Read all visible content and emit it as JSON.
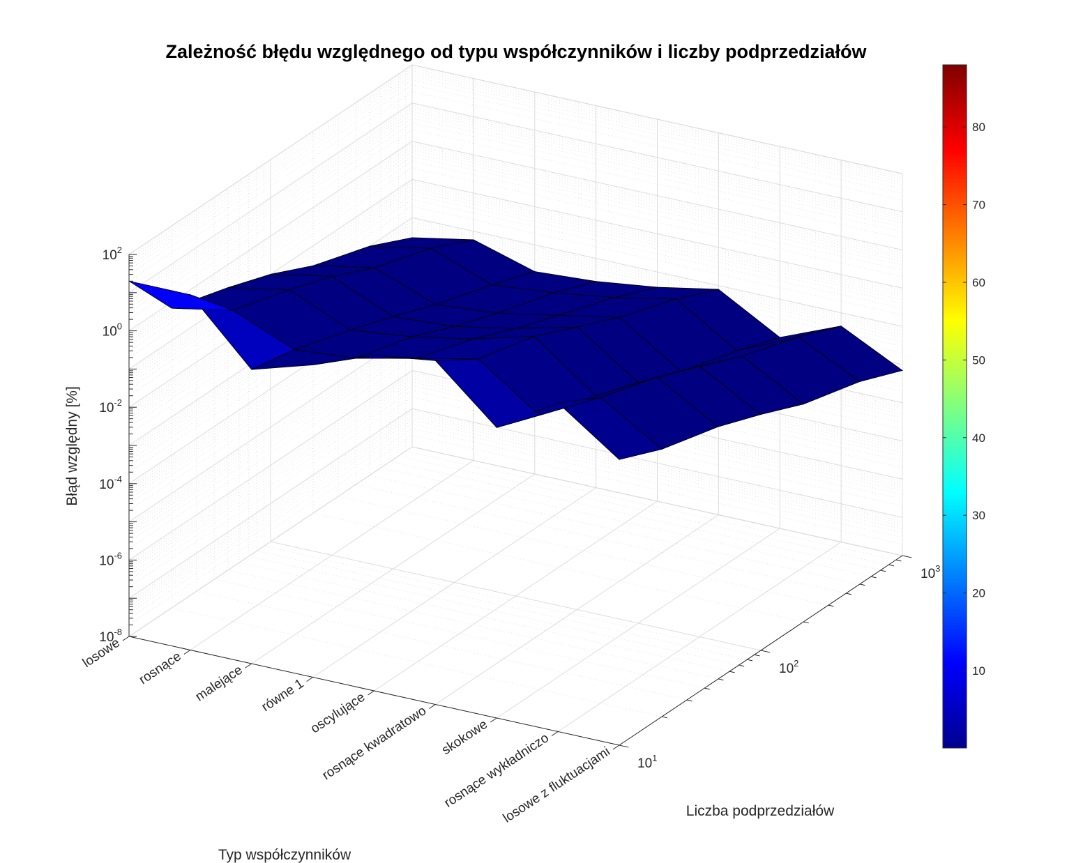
{
  "chart_data": {
    "type": "surface",
    "title": "Zależność błędu względnego od typu współczynników i liczby podprzedziałów",
    "xlabel": "Typ współczynników",
    "ylabel": "Liczba podprzedziałów",
    "zlabel": "Błąd względny [%]",
    "categories": [
      "losowe",
      "rosnące",
      "malejące",
      "równe 1",
      "oscylujące",
      "rosnące kwadratowo",
      "skokowe",
      "rosnące wykładniczo",
      "losowe z fluktuacjami"
    ],
    "y_ticks": [
      {
        "base": "10",
        "exp": "1",
        "value": 10
      },
      {
        "base": "10",
        "exp": "2",
        "value": 100
      },
      {
        "base": "10",
        "exp": "3",
        "value": 1000
      }
    ],
    "z_ticks": [
      {
        "base": "10",
        "exp": "-8",
        "value": 1e-08
      },
      {
        "base": "10",
        "exp": "-6",
        "value": 1e-06
      },
      {
        "base": "10",
        "exp": "-4",
        "value": 0.0001
      },
      {
        "base": "10",
        "exp": "-2",
        "value": 0.01
      },
      {
        "base": "10",
        "exp": "0",
        "value": 1
      },
      {
        "base": "10",
        "exp": "2",
        "value": 100
      }
    ],
    "ylim": [
      10,
      1000
    ],
    "zlim": [
      1e-08,
      100
    ],
    "zscale": "log",
    "grid": true,
    "colormap": "jet",
    "colorbar": {
      "ticks": [
        "10",
        "20",
        "30",
        "40",
        "50",
        "60",
        "70",
        "80"
      ],
      "clim": [
        0.04,
        88
      ],
      "location": "right"
    }
  }
}
